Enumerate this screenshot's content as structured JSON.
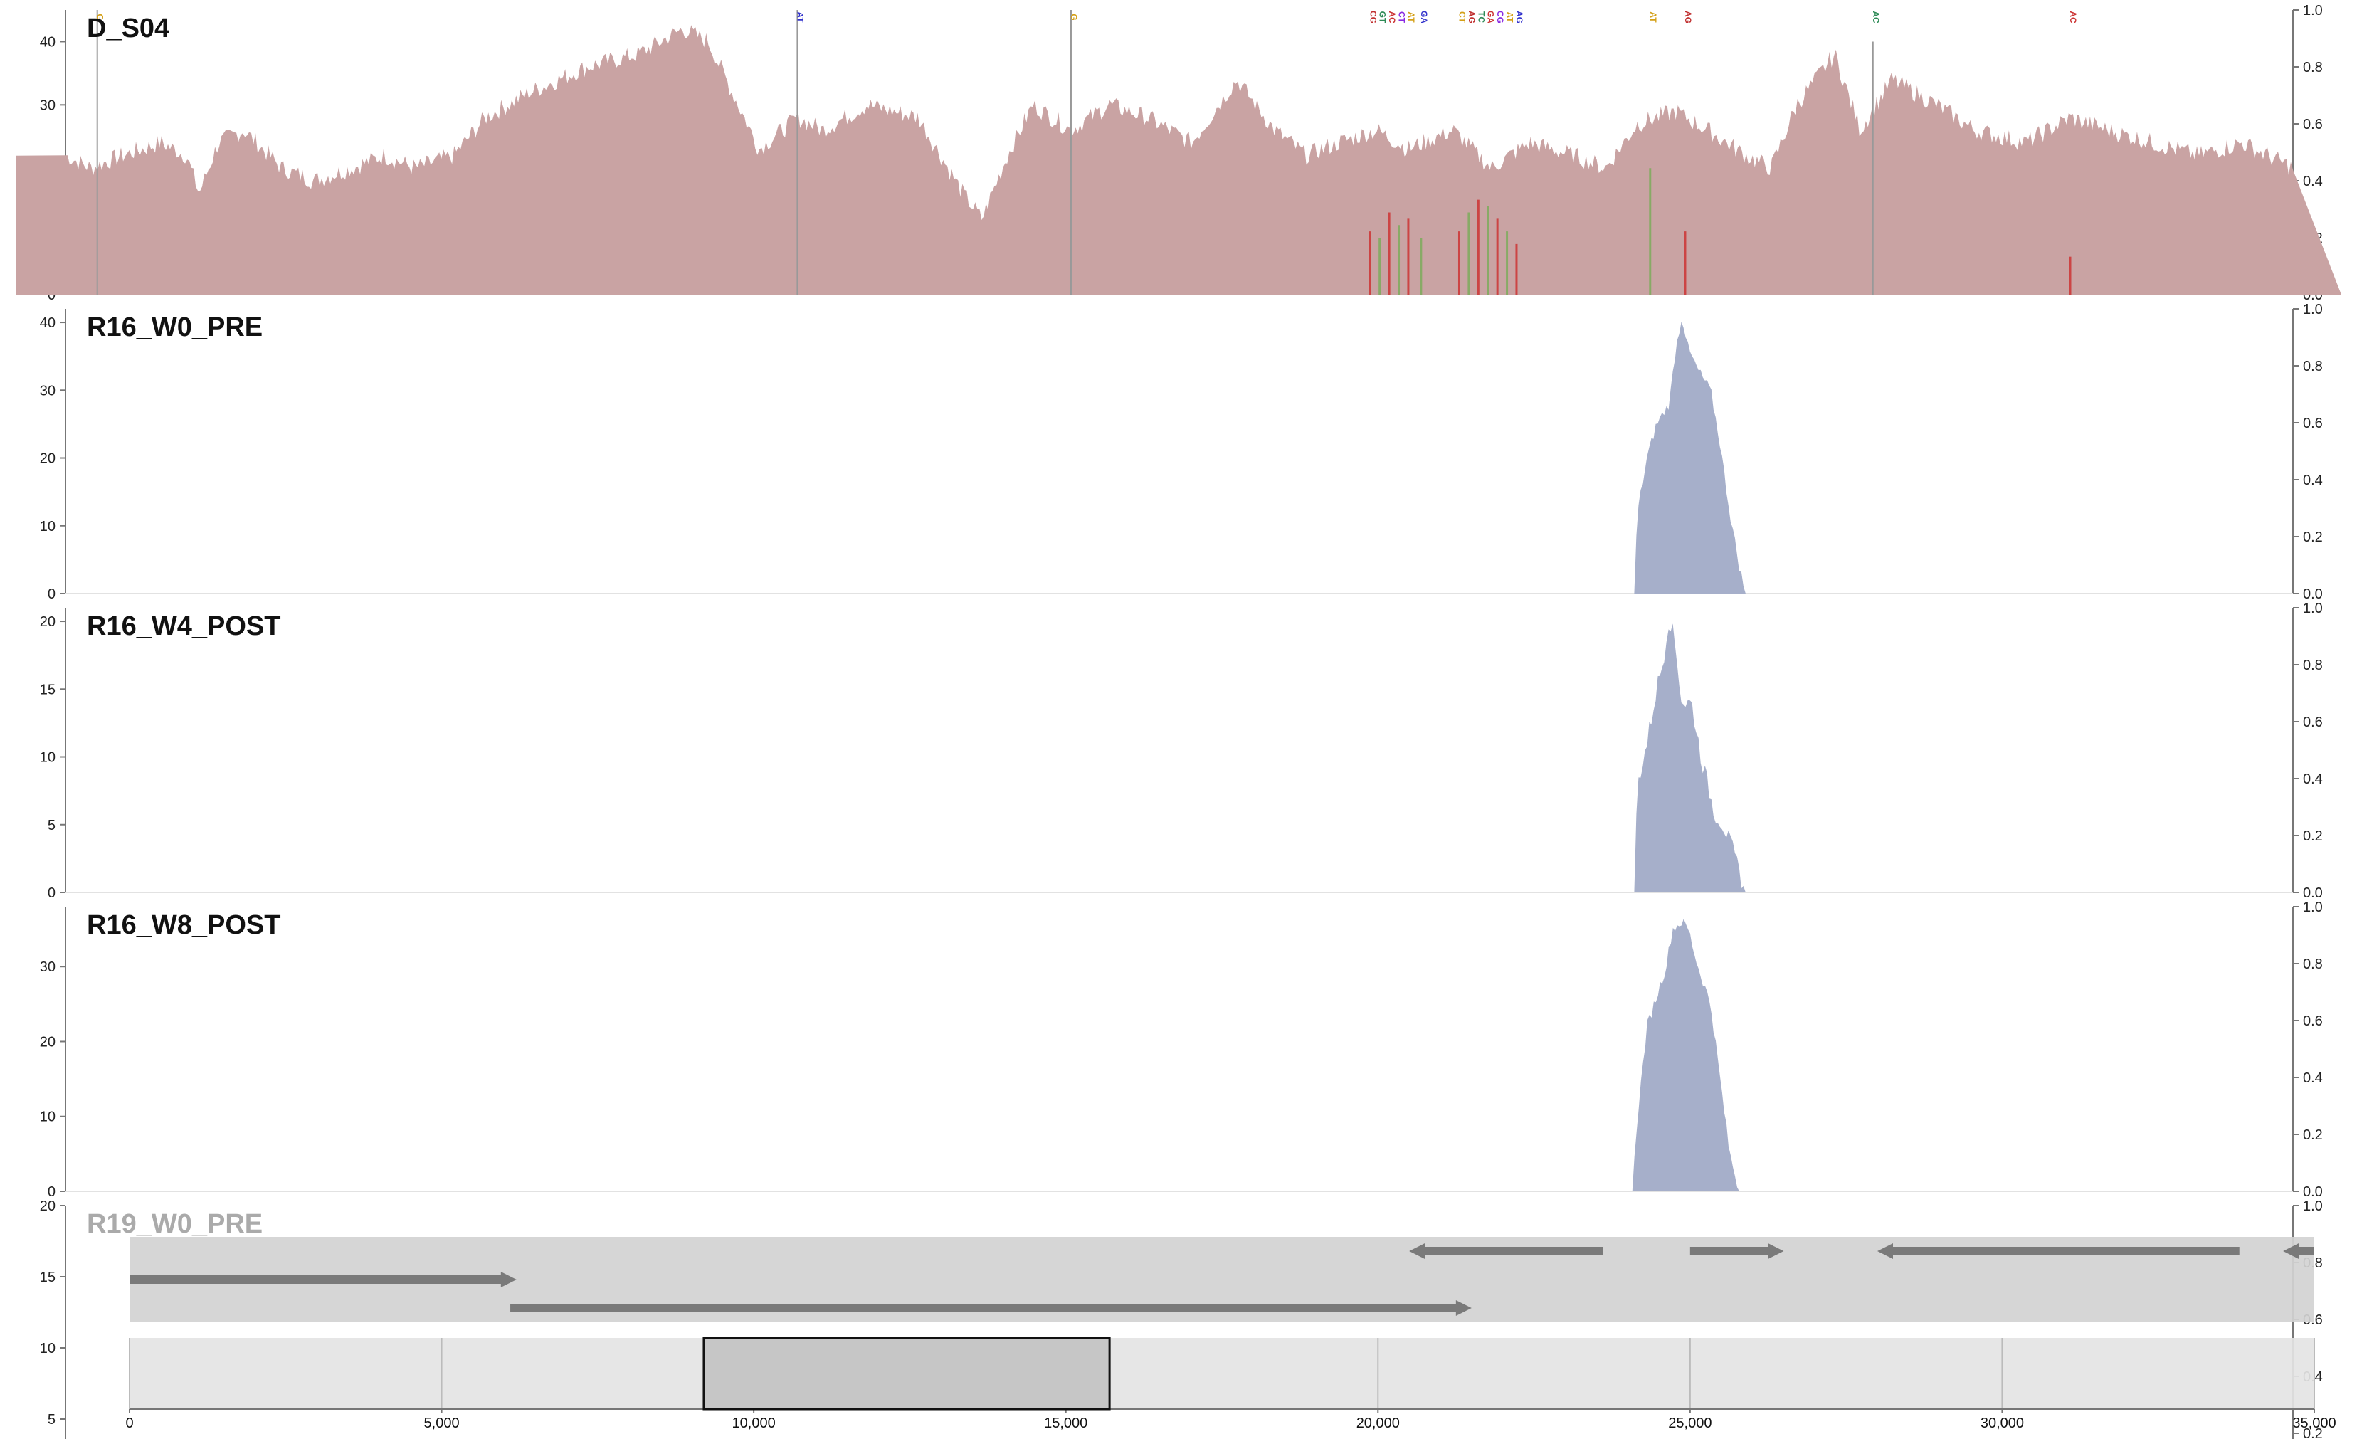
{
  "chart_data": {
    "type": "area",
    "tracks": [
      {
        "name": "D_S04",
        "y_ticks": [
          0,
          10,
          20,
          30,
          40
        ],
        "ylim": [
          0,
          45
        ],
        "right_ticks": [
          "0.0",
          "0.2",
          "0.4",
          "0.6",
          "0.8",
          "1.0"
        ],
        "color": "#c9a3a3",
        "coverage_profile": [
          [
            0,
            22
          ],
          [
            400,
            20
          ],
          [
            900,
            22
          ],
          [
            1500,
            24
          ],
          [
            1900,
            22
          ],
          [
            2100,
            16
          ],
          [
            2400,
            24
          ],
          [
            2800,
            26
          ],
          [
            3400,
            20
          ],
          [
            3900,
            18
          ],
          [
            4500,
            20
          ],
          [
            5000,
            22
          ],
          [
            5500,
            20
          ],
          [
            6100,
            22
          ],
          [
            6600,
            28
          ],
          [
            7300,
            32
          ],
          [
            8200,
            36
          ],
          [
            9000,
            38
          ],
          [
            9700,
            42
          ],
          [
            10100,
            40
          ],
          [
            10900,
            23
          ],
          [
            11500,
            28
          ],
          [
            11900,
            26
          ],
          [
            12600,
            30
          ],
          [
            13400,
            28
          ],
          [
            14100,
            16
          ],
          [
            14400,
            12
          ],
          [
            14800,
            22
          ],
          [
            15200,
            30
          ],
          [
            15800,
            26
          ],
          [
            16400,
            30
          ],
          [
            17000,
            28
          ],
          [
            17700,
            24
          ],
          [
            18400,
            34
          ],
          [
            19000,
            26
          ],
          [
            19500,
            22
          ],
          [
            20000,
            24
          ],
          [
            20600,
            26
          ],
          [
            21100,
            23
          ],
          [
            21800,
            26
          ],
          [
            22400,
            20
          ],
          [
            23000,
            24
          ],
          [
            23700,
            22
          ],
          [
            24200,
            20
          ],
          [
            24700,
            27
          ],
          [
            25300,
            29
          ],
          [
            25800,
            26
          ],
          [
            26400,
            22
          ],
          [
            26800,
            20
          ],
          [
            27200,
            30
          ],
          [
            27800,
            38
          ],
          [
            28200,
            26
          ],
          [
            28700,
            34
          ],
          [
            29400,
            30
          ],
          [
            30000,
            26
          ],
          [
            30800,
            24
          ],
          [
            31500,
            28
          ],
          [
            32100,
            26
          ],
          [
            32800,
            24
          ],
          [
            33500,
            22
          ],
          [
            34200,
            24
          ],
          [
            35000,
            20
          ]
        ],
        "variant_markers": [
          {
            "pos": 500,
            "label": "G",
            "height": 45
          },
          {
            "pos": 11500,
            "label": "AT",
            "height": 45
          },
          {
            "pos": 15800,
            "label": "G",
            "height": 45
          },
          {
            "pos": 20500,
            "label": "CG",
            "height": 10
          },
          {
            "pos": 20650,
            "label": "GT",
            "height": 9
          },
          {
            "pos": 20800,
            "label": "AC",
            "height": 13
          },
          {
            "pos": 20950,
            "label": "CT",
            "height": 11
          },
          {
            "pos": 21100,
            "label": "AT",
            "height": 12
          },
          {
            "pos": 21300,
            "label": "GA",
            "height": 9
          },
          {
            "pos": 21900,
            "label": "CT",
            "height": 10
          },
          {
            "pos": 22050,
            "label": "AG",
            "height": 13
          },
          {
            "pos": 22200,
            "label": "TC",
            "height": 15
          },
          {
            "pos": 22350,
            "label": "GA",
            "height": 14
          },
          {
            "pos": 22500,
            "label": "CG",
            "height": 12
          },
          {
            "pos": 22650,
            "label": "AT",
            "height": 10
          },
          {
            "pos": 22800,
            "label": "AG",
            "height": 8
          },
          {
            "pos": 24900,
            "label": "AT",
            "height": 20
          },
          {
            "pos": 25450,
            "label": "AG",
            "height": 10
          },
          {
            "pos": 28400,
            "label": "AC",
            "height": 40
          },
          {
            "pos": 31500,
            "label": "AC",
            "height": 6
          }
        ]
      },
      {
        "name": "R16_W0_PRE",
        "y_ticks": [
          0,
          10,
          20,
          30,
          40
        ],
        "ylim": [
          0,
          42
        ],
        "right_ticks": [
          "0.0",
          "0.2",
          "0.4",
          "0.6",
          "0.8",
          "1.0"
        ],
        "color": "#a6afca",
        "coverage_profile": [
          [
            24650,
            0
          ],
          [
            24700,
            12
          ],
          [
            24850,
            20
          ],
          [
            25000,
            25
          ],
          [
            25200,
            28
          ],
          [
            25300,
            36
          ],
          [
            25400,
            41
          ],
          [
            25500,
            36
          ],
          [
            25650,
            33
          ],
          [
            25850,
            30
          ],
          [
            26000,
            22
          ],
          [
            26150,
            12
          ],
          [
            26300,
            4
          ],
          [
            26400,
            0
          ]
        ]
      },
      {
        "name": "R16_W4_POST",
        "y_ticks": [
          0,
          5,
          10,
          15,
          20
        ],
        "ylim": [
          0,
          21
        ],
        "right_ticks": [
          "0.0",
          "0.2",
          "0.4",
          "0.6",
          "0.8",
          "1.0"
        ],
        "color": "#a6afca",
        "coverage_profile": [
          [
            24650,
            0
          ],
          [
            24700,
            8
          ],
          [
            24850,
            11
          ],
          [
            25000,
            15
          ],
          [
            25100,
            17
          ],
          [
            25200,
            20.5
          ],
          [
            25300,
            18
          ],
          [
            25400,
            14
          ],
          [
            25550,
            14
          ],
          [
            25700,
            10
          ],
          [
            25900,
            6
          ],
          [
            26050,
            5
          ],
          [
            26200,
            3
          ],
          [
            26400,
            0
          ]
        ]
      },
      {
        "name": "R16_W8_POST",
        "y_ticks": [
          0,
          10,
          20,
          30
        ],
        "ylim": [
          0,
          38
        ],
        "right_ticks": [
          "0.0",
          "0.2",
          "0.4",
          "0.6",
          "0.8",
          "1.0"
        ],
        "color": "#a6afca",
        "coverage_profile": [
          [
            24620,
            0
          ],
          [
            24700,
            10
          ],
          [
            24850,
            22
          ],
          [
            25000,
            26
          ],
          [
            25150,
            30
          ],
          [
            25250,
            35
          ],
          [
            25400,
            36
          ],
          [
            25500,
            35
          ],
          [
            25650,
            30
          ],
          [
            25850,
            25
          ],
          [
            26000,
            15
          ],
          [
            26150,
            5
          ],
          [
            26300,
            0
          ]
        ]
      },
      {
        "name": "R19_W0_PRE",
        "y_ticks": [
          5,
          10,
          15,
          20
        ],
        "ylim": [
          0,
          20
        ],
        "right_ticks": [
          "0.2",
          "0.4",
          "0.6",
          "0.8",
          "1.0"
        ],
        "color": "#a6afca",
        "coverage_profile": []
      }
    ],
    "genes": [
      {
        "start": 0,
        "end": 6200,
        "strand": "+",
        "row": 1
      },
      {
        "start": 6100,
        "end": 21500,
        "strand": "+",
        "row": 2
      },
      {
        "start": 20500,
        "end": 23600,
        "strand": "-",
        "row": 0
      },
      {
        "start": 25000,
        "end": 26500,
        "strand": "+",
        "row": 0
      },
      {
        "start": 28000,
        "end": 33800,
        "strand": "-",
        "row": 0
      },
      {
        "start": 34500,
        "end": 35000,
        "strand": "-",
        "row": 0
      }
    ],
    "x_range": [
      0,
      35000
    ],
    "navigator": {
      "x_ticks": [
        "0",
        "5,000",
        "10,000",
        "15,000",
        "20,000",
        "25,000",
        "30,000",
        "35,000"
      ],
      "x_tick_values": [
        0,
        5000,
        10000,
        15000,
        20000,
        25000,
        30000,
        35000
      ],
      "selection": [
        9200,
        15700
      ]
    }
  }
}
